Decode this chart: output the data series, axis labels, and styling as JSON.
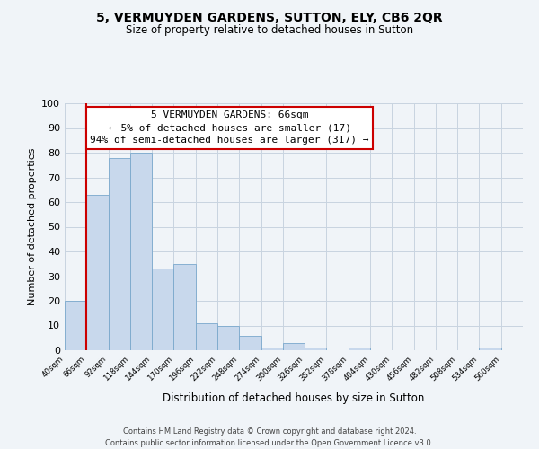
{
  "title": "5, VERMUYDEN GARDENS, SUTTON, ELY, CB6 2QR",
  "subtitle": "Size of property relative to detached houses in Sutton",
  "xlabel": "Distribution of detached houses by size in Sutton",
  "ylabel": "Number of detached properties",
  "bins_left_edges": [
    40,
    66,
    92,
    118,
    144,
    170,
    196,
    222,
    248,
    274,
    300,
    326,
    352,
    378,
    404,
    430,
    456,
    482,
    508,
    534
  ],
  "bar_heights": [
    20,
    63,
    78,
    80,
    33,
    35,
    11,
    10,
    6,
    1,
    3,
    1,
    0,
    1,
    0,
    0,
    0,
    0,
    0,
    1
  ],
  "bin_width": 26,
  "bar_color": "#c8d8ec",
  "bar_edge_color": "#7aa8cc",
  "grid_color": "#c8d4e0",
  "background_color": "#f0f4f8",
  "plot_bg_color": "#f0f4f8",
  "marker_x": 66,
  "marker_color": "#cc0000",
  "ylim": [
    0,
    100
  ],
  "xlim": [
    40,
    586
  ],
  "annotation_title": "5 VERMUYDEN GARDENS: 66sqm",
  "annotation_line1": "← 5% of detached houses are smaller (17)",
  "annotation_line2": "94% of semi-detached houses are larger (317) →",
  "annotation_box_color": "#ffffff",
  "annotation_box_edge_color": "#cc0000",
  "tick_labels": [
    "40sqm",
    "66sqm",
    "92sqm",
    "118sqm",
    "144sqm",
    "170sqm",
    "196sqm",
    "222sqm",
    "248sqm",
    "274sqm",
    "300sqm",
    "326sqm",
    "352sqm",
    "378sqm",
    "404sqm",
    "430sqm",
    "456sqm",
    "482sqm",
    "508sqm",
    "534sqm",
    "560sqm"
  ],
  "footnote1": "Contains HM Land Registry data © Crown copyright and database right 2024.",
  "footnote2": "Contains public sector information licensed under the Open Government Licence v3.0."
}
